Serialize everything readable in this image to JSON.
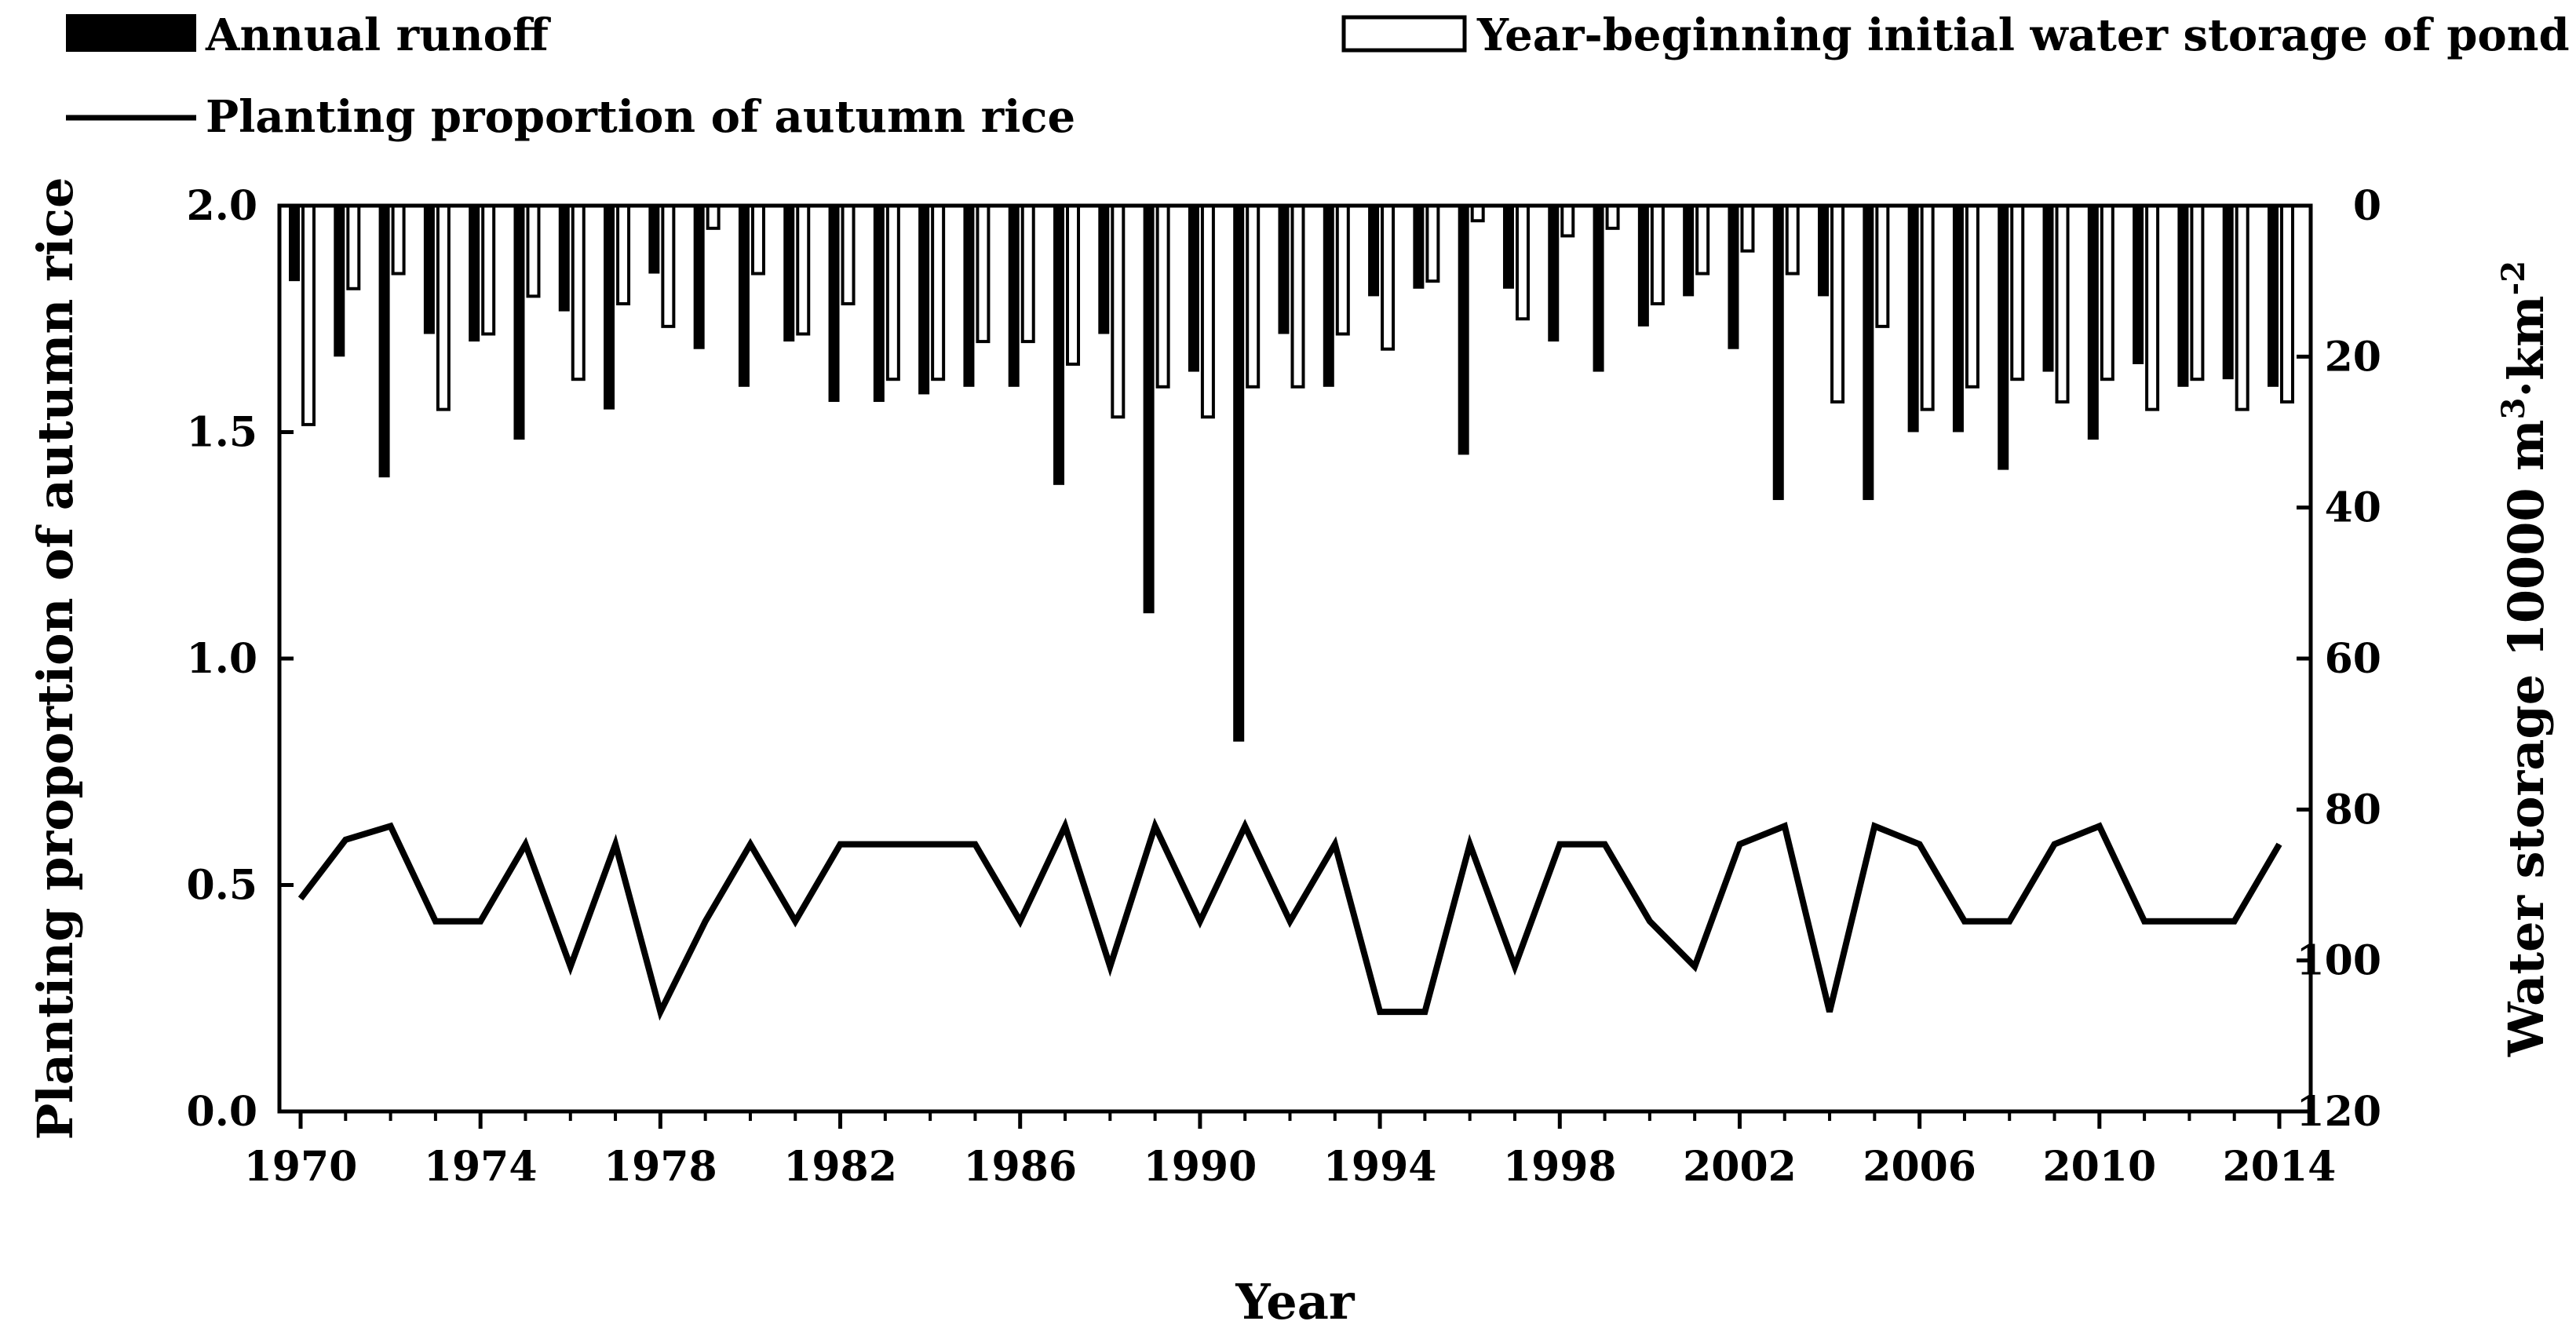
{
  "chart_data": {
    "type": "bar",
    "x": [
      1970,
      1971,
      1972,
      1973,
      1974,
      1975,
      1976,
      1977,
      1978,
      1979,
      1980,
      1981,
      1982,
      1983,
      1984,
      1985,
      1986,
      1987,
      1988,
      1989,
      1990,
      1991,
      1992,
      1993,
      1994,
      1995,
      1996,
      1997,
      1998,
      1999,
      2000,
      2001,
      2002,
      2003,
      2004,
      2005,
      2006,
      2007,
      2008,
      2009,
      2010,
      2011,
      2012,
      2013,
      2014
    ],
    "xticks": [
      "1970",
      "1974",
      "1978",
      "1982",
      "1986",
      "1990",
      "1994",
      "1998",
      "2002",
      "2006",
      "2010",
      "2014"
    ],
    "xlabel": "Year",
    "ylabel_left": "Planting proportion of autumn rice",
    "ylim_left": [
      0,
      2
    ],
    "yticks_left": [
      "0.0",
      "0.5",
      "1.0",
      "1.5",
      "2.0"
    ],
    "ylabel_right_prefix": "Water storage  10000 m",
    "ylabel_right_sup1": "3",
    "ylabel_right_mid": "·km",
    "ylabel_right_sup2": "-2",
    "ylim_right_inverted": [
      0,
      120
    ],
    "yticks_right": [
      "0",
      "20",
      "40",
      "60",
      "80",
      "100",
      "120"
    ],
    "series": [
      {
        "name": "Annual runoff",
        "axis": "right",
        "style": "filled-bar",
        "values": [
          10,
          20,
          36,
          17,
          18,
          31,
          14,
          27,
          9,
          19,
          24,
          18,
          26,
          26,
          25,
          24,
          24,
          37,
          17,
          54,
          22,
          71,
          17,
          24,
          12,
          11,
          33,
          11,
          18,
          22,
          16,
          12,
          19,
          39,
          12,
          39,
          30,
          30,
          35,
          22,
          31,
          21,
          24,
          23,
          24
        ]
      },
      {
        "name": "Year-beginning initial water storage of pond",
        "axis": "right",
        "style": "hollow-bar",
        "values": [
          29,
          11,
          9,
          27,
          17,
          12,
          23,
          13,
          16,
          3,
          9,
          17,
          13,
          23,
          23,
          18,
          18,
          21,
          28,
          24,
          28,
          24,
          24,
          17,
          19,
          10,
          2,
          15,
          4,
          3,
          13,
          9,
          6,
          9,
          26,
          16,
          27,
          24,
          23,
          26,
          23,
          27,
          23,
          27,
          26
        ]
      },
      {
        "name": "Planting proportion of autumn rice",
        "axis": "left",
        "style": "line",
        "values": [
          0.47,
          0.6,
          0.63,
          0.42,
          0.42,
          0.59,
          0.32,
          0.59,
          0.22,
          0.42,
          0.59,
          0.42,
          0.59,
          0.59,
          0.59,
          0.59,
          0.42,
          0.63,
          0.32,
          0.63,
          0.42,
          0.63,
          0.42,
          0.59,
          0.22,
          0.22,
          0.59,
          0.32,
          0.59,
          0.59,
          0.42,
          0.32,
          0.59,
          0.63,
          0.22,
          0.63,
          0.59,
          0.42,
          0.42,
          0.59,
          0.63,
          0.42,
          0.42,
          0.42,
          0.59
        ]
      }
    ],
    "colors": {
      "bar": "#000000",
      "hollow": "#ffffff",
      "line": "#000000"
    }
  }
}
